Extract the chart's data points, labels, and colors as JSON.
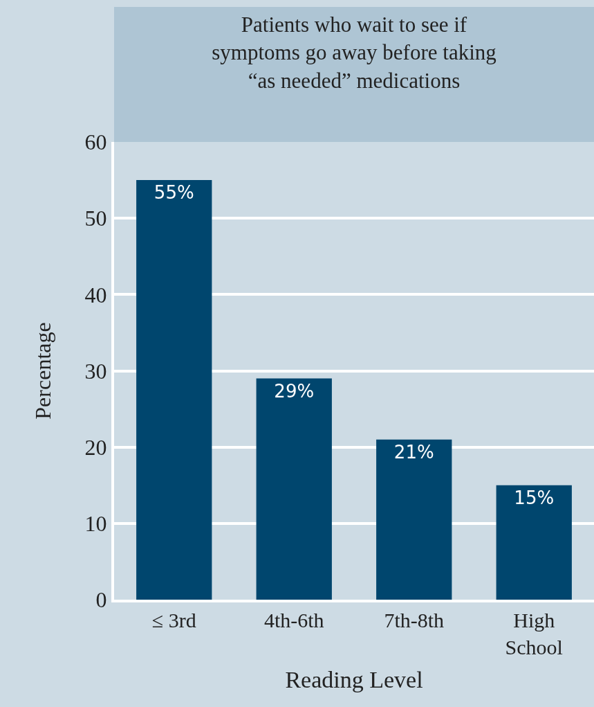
{
  "chart_data": {
    "type": "bar",
    "title": "Patients who wait to see if symptoms go away before taking “as needed” medications",
    "xlabel": "Reading Level",
    "ylabel": "Percentage",
    "categories": [
      "≤ 3rd",
      "4th-6th",
      "7th-8th",
      "High School"
    ],
    "values": [
      55,
      29,
      21,
      15
    ],
    "color": "#00466e",
    "value_labels": [
      "55%",
      "29%",
      "21%",
      "15%"
    ],
    "ylim": [
      0,
      60
    ],
    "yticks": [
      0,
      10,
      20,
      30,
      40,
      50,
      60
    ],
    "grid": "y"
  }
}
